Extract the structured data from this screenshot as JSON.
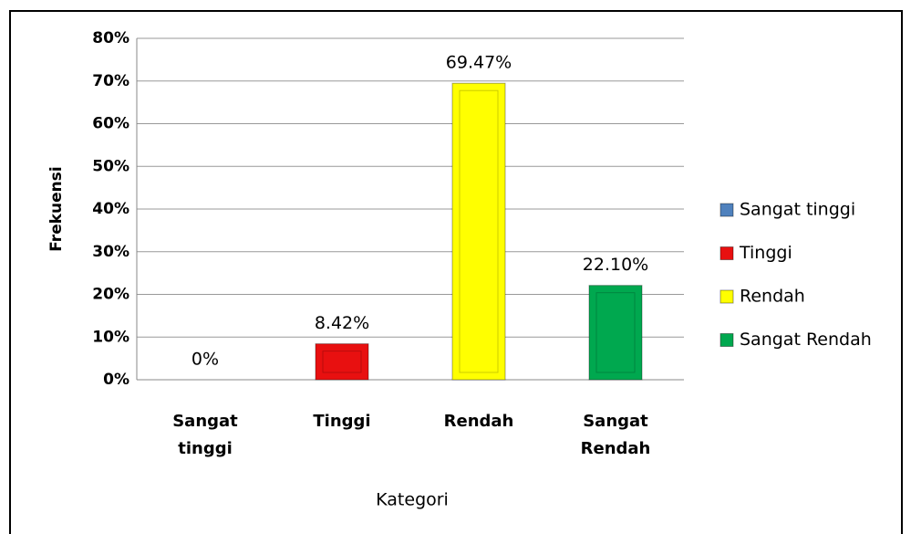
{
  "chart_data": {
    "type": "bar",
    "categories": [
      "Sangat tinggi",
      "Tinggi",
      "Rendah",
      "Sangat Rendah"
    ],
    "values": [
      0,
      8.42,
      69.47,
      22.1
    ],
    "value_labels": [
      "0%",
      "8.42%",
      "69.47%",
      "22.10%"
    ],
    "colors": [
      "#4f81bd",
      "#e81010",
      "#ffff00",
      "#00a84f"
    ],
    "y_label": "Frekuensi",
    "x_label": "Kategori",
    "ylim": [
      0,
      80
    ],
    "yticks": [
      {
        "value": 0,
        "label": "0%"
      },
      {
        "value": 10,
        "label": "10%"
      },
      {
        "value": 20,
        "label": "20%"
      },
      {
        "value": 30,
        "label": "30%"
      },
      {
        "value": 40,
        "label": "40%"
      },
      {
        "value": 50,
        "label": "50%"
      },
      {
        "value": 60,
        "label": "60%"
      },
      {
        "value": 70,
        "label": "70%"
      },
      {
        "value": 80,
        "label": "80%"
      }
    ],
    "grid": true,
    "legend": "right"
  }
}
